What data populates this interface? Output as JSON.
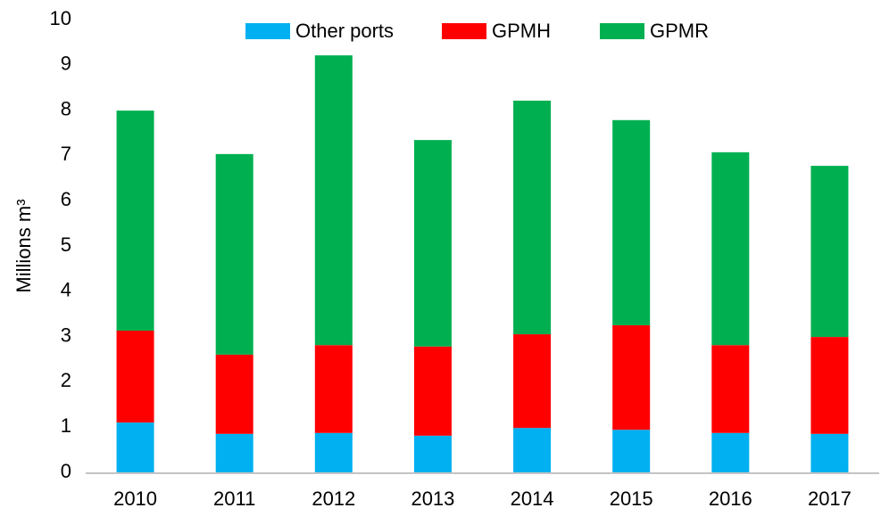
{
  "chart_data": {
    "type": "stacked_bar",
    "ylabel": "Millions m³",
    "categories": [
      "2010",
      "2011",
      "2012",
      "2013",
      "2014",
      "2015",
      "2016",
      "2017"
    ],
    "series": [
      {
        "name": "Other ports",
        "color": "#00b0f0",
        "values": [
          1.1,
          0.85,
          0.87,
          0.81,
          0.98,
          0.94,
          0.87,
          0.85
        ]
      },
      {
        "name": "GPMH",
        "color": "#ff0000",
        "values": [
          2.03,
          1.75,
          1.94,
          1.97,
          2.07,
          2.31,
          1.94,
          2.14
        ]
      },
      {
        "name": "GPMR",
        "color": "#00b050",
        "values": [
          4.86,
          4.43,
          6.4,
          4.56,
          5.16,
          4.53,
          4.26,
          3.78
        ]
      }
    ],
    "ylim": [
      0,
      10
    ],
    "yticks": [
      0,
      1,
      2,
      3,
      4,
      5,
      6,
      7,
      8,
      9,
      10
    ],
    "grid": false,
    "legend": "top"
  }
}
